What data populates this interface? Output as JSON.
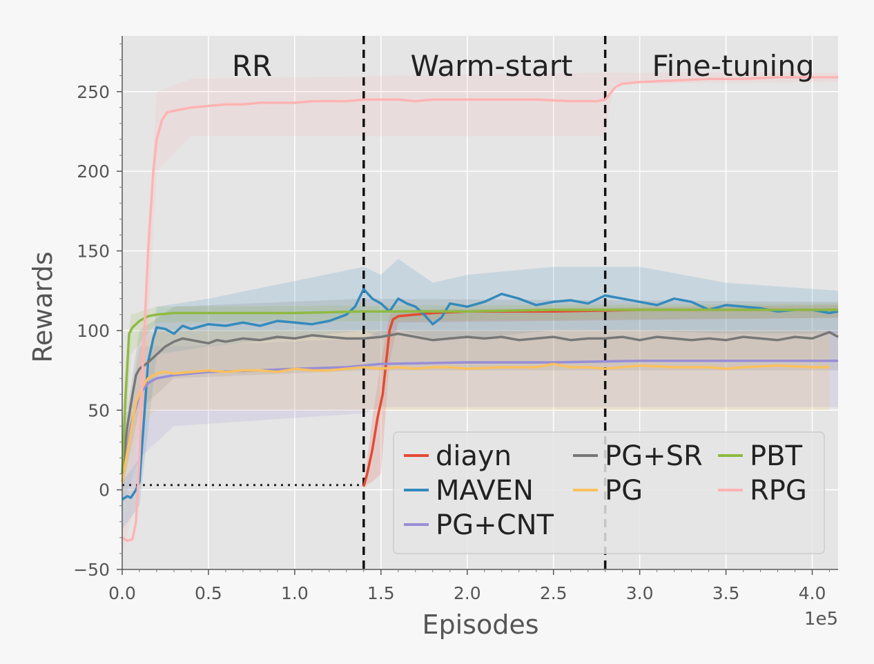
{
  "chart_data": {
    "type": "line",
    "xlabel": "Episodes",
    "ylabel": "Rewards",
    "x_multiplier_label": "1e5",
    "xlim": [
      0,
      4.15
    ],
    "ylim": [
      -50,
      285
    ],
    "xticks": [
      0.0,
      0.5,
      1.0,
      1.5,
      2.0,
      2.5,
      3.0,
      3.5,
      4.0
    ],
    "xtick_labels": [
      "0.0",
      "0.5",
      "1.0",
      "1.5",
      "2.0",
      "2.5",
      "3.0",
      "3.5",
      "4.0"
    ],
    "yticks": [
      -50,
      0,
      50,
      100,
      150,
      200,
      250
    ],
    "ytick_labels": [
      "−50",
      "0",
      "50",
      "100",
      "150",
      "200",
      "250"
    ],
    "grid": true,
    "phases": [
      {
        "label": "RR",
        "x_start": 0.0,
        "x_end": 1.4
      },
      {
        "label": "Warm-start",
        "x_start": 1.4,
        "x_end": 2.8
      },
      {
        "label": "Fine-tuning",
        "x_start": 2.8,
        "x_end": 4.15
      }
    ],
    "phase_boundaries": [
      1.4,
      2.8
    ],
    "baseline_annotation": {
      "y": 3,
      "x_start": 0.0,
      "x_end": 1.4,
      "style": "dotted"
    },
    "legend": {
      "placement": "lower-right",
      "ncol": 3
    },
    "series": [
      {
        "name": "diayn",
        "color": "#e24a33",
        "x": [
          1.4,
          1.42,
          1.45,
          1.48,
          1.51,
          1.53,
          1.55,
          1.57,
          1.6,
          1.7,
          1.8,
          2.0,
          2.5,
          3.0,
          3.5,
          4.15
        ],
        "y": [
          2,
          10,
          25,
          45,
          60,
          80,
          100,
          107,
          109,
          110,
          111,
          112,
          112,
          113,
          113,
          113
        ],
        "band": [
          [
            1.4,
            2,
            2
          ],
          [
            1.45,
            5,
            45
          ],
          [
            1.5,
            10,
            80
          ],
          [
            1.55,
            80,
            110
          ],
          [
            1.6,
            105,
            113
          ],
          [
            4.15,
            108,
            116
          ]
        ]
      },
      {
        "name": "MAVEN",
        "color": "#348abd",
        "x": [
          0.0,
          0.03,
          0.05,
          0.08,
          0.1,
          0.13,
          0.15,
          0.18,
          0.2,
          0.25,
          0.3,
          0.35,
          0.4,
          0.5,
          0.6,
          0.7,
          0.8,
          0.9,
          1.0,
          1.1,
          1.2,
          1.3,
          1.35,
          1.4,
          1.45,
          1.5,
          1.55,
          1.6,
          1.65,
          1.7,
          1.75,
          1.8,
          1.85,
          1.9,
          2.0,
          2.1,
          2.2,
          2.3,
          2.4,
          2.5,
          2.6,
          2.7,
          2.8,
          2.9,
          3.0,
          3.1,
          3.2,
          3.3,
          3.4,
          3.5,
          3.6,
          3.7,
          3.8,
          3.9,
          4.0,
          4.1,
          4.15
        ],
        "y": [
          -6,
          -4,
          -5,
          0,
          5,
          50,
          80,
          95,
          102,
          101,
          98,
          103,
          101,
          104,
          103,
          105,
          103,
          106,
          105,
          104,
          106,
          110,
          115,
          126,
          120,
          117,
          112,
          120,
          117,
          115,
          110,
          104,
          108,
          117,
          115,
          118,
          123,
          120,
          116,
          118,
          119,
          117,
          122,
          120,
          118,
          116,
          120,
          118,
          113,
          116,
          115,
          114,
          112,
          113,
          113,
          111,
          112
        ],
        "band": [
          [
            0.0,
            -25,
            5
          ],
          [
            0.1,
            -10,
            20
          ],
          [
            0.2,
            85,
            115
          ],
          [
            0.5,
            90,
            120
          ],
          [
            1.4,
            100,
            140
          ],
          [
            1.5,
            95,
            135
          ],
          [
            1.6,
            100,
            145
          ],
          [
            1.8,
            95,
            130
          ],
          [
            2.0,
            95,
            135
          ],
          [
            2.5,
            100,
            140
          ],
          [
            3.0,
            100,
            140
          ],
          [
            3.5,
            98,
            130
          ],
          [
            4.15,
            98,
            125
          ]
        ]
      },
      {
        "name": "PG+CNT",
        "color": "#988ed5",
        "x": [
          0.0,
          0.05,
          0.1,
          0.15,
          0.2,
          0.3,
          0.5,
          0.8,
          1.0,
          1.3,
          1.5,
          2.0,
          2.5,
          3.0,
          3.5,
          4.15
        ],
        "y": [
          5,
          40,
          60,
          67,
          70,
          72,
          74,
          75,
          76,
          77,
          79,
          80,
          80,
          81,
          81,
          81
        ],
        "band": [
          [
            0.0,
            -10,
            25
          ],
          [
            0.1,
            20,
            90
          ],
          [
            0.3,
            40,
            90
          ],
          [
            1.4,
            48,
            95
          ],
          [
            1.5,
            52,
            100
          ],
          [
            4.15,
            52,
            100
          ]
        ]
      },
      {
        "name": "PG+SR",
        "color": "#777777",
        "x": [
          0.0,
          0.03,
          0.06,
          0.08,
          0.1,
          0.15,
          0.2,
          0.25,
          0.3,
          0.35,
          0.4,
          0.45,
          0.5,
          0.55,
          0.6,
          0.7,
          0.8,
          0.9,
          1.0,
          1.1,
          1.2,
          1.3,
          1.4,
          1.5,
          1.6,
          1.7,
          1.8,
          1.9,
          2.0,
          2.1,
          2.2,
          2.3,
          2.4,
          2.5,
          2.6,
          2.7,
          2.8,
          2.9,
          3.0,
          3.1,
          3.2,
          3.3,
          3.4,
          3.5,
          3.6,
          3.7,
          3.8,
          3.9,
          4.0,
          4.1,
          4.15
        ],
        "y": [
          10,
          40,
          60,
          72,
          76,
          80,
          85,
          90,
          93,
          95,
          94,
          93,
          92,
          94,
          93,
          95,
          94,
          96,
          95,
          97,
          96,
          95,
          95,
          96,
          98,
          96,
          94,
          95,
          96,
          95,
          96,
          94,
          95,
          96,
          94,
          95,
          95,
          96,
          94,
          96,
          95,
          94,
          95,
          94,
          96,
          95,
          94,
          96,
          95,
          99,
          96
        ],
        "band": [
          [
            0.0,
            0,
            30
          ],
          [
            0.1,
            50,
            100
          ],
          [
            0.3,
            70,
            115
          ],
          [
            1.4,
            75,
            120
          ],
          [
            4.15,
            75,
            118
          ]
        ]
      },
      {
        "name": "PG",
        "color": "#fbc15e",
        "x": [
          0.0,
          0.04,
          0.08,
          0.12,
          0.15,
          0.2,
          0.25,
          0.3,
          0.4,
          0.5,
          0.6,
          0.7,
          0.8,
          0.9,
          1.0,
          1.1,
          1.2,
          1.3,
          1.4,
          1.5,
          1.6,
          1.7,
          1.8,
          1.9,
          2.0,
          2.2,
          2.4,
          2.5,
          2.6,
          2.7,
          2.8,
          3.0,
          3.2,
          3.4,
          3.5,
          3.6,
          3.8,
          4.0,
          4.1
        ],
        "y": [
          5,
          30,
          55,
          65,
          70,
          73,
          74,
          73,
          74,
          75,
          74,
          75,
          75,
          74,
          76,
          75,
          75,
          76,
          77,
          76,
          77,
          76,
          77,
          77,
          76,
          77,
          77,
          79,
          77,
          77,
          76,
          78,
          77,
          77,
          76,
          77,
          78,
          77,
          77
        ],
        "band": [
          [
            0.0,
            -10,
            20
          ],
          [
            0.1,
            40,
            90
          ],
          [
            0.2,
            50,
            100
          ],
          [
            1.4,
            50,
            100
          ],
          [
            4.1,
            50,
            100
          ]
        ]
      },
      {
        "name": "PBT",
        "color": "#8eba42",
        "x": [
          0.0,
          0.02,
          0.04,
          0.06,
          0.1,
          0.15,
          0.2,
          0.3,
          0.5,
          1.0,
          1.4,
          1.5,
          2.0,
          2.5,
          3.0,
          3.5,
          4.15
        ],
        "y": [
          10,
          60,
          98,
          102,
          106,
          109,
          110,
          111,
          111,
          111,
          112,
          112,
          112,
          113,
          113,
          113,
          113
        ],
        "band": [
          [
            0.0,
            0,
            40
          ],
          [
            0.05,
            85,
            110
          ],
          [
            0.2,
            105,
            115
          ],
          [
            4.15,
            108,
            117
          ]
        ]
      },
      {
        "name": "RPG",
        "color": "#ffb3b3",
        "x": [
          0.0,
          0.03,
          0.06,
          0.08,
          0.1,
          0.12,
          0.15,
          0.18,
          0.2,
          0.23,
          0.26,
          0.3,
          0.35,
          0.4,
          0.5,
          0.6,
          0.7,
          0.8,
          0.9,
          1.0,
          1.1,
          1.2,
          1.3,
          1.4,
          1.5,
          1.6,
          1.7,
          1.8,
          1.9,
          2.0,
          2.2,
          2.4,
          2.6,
          2.7,
          2.75,
          2.8,
          2.83,
          2.86,
          2.9,
          3.0,
          3.2,
          3.4,
          3.6,
          3.8,
          4.0,
          4.15
        ],
        "y": [
          -30,
          -32,
          -31,
          -20,
          20,
          80,
          150,
          200,
          220,
          232,
          237,
          238,
          239,
          240,
          241,
          242,
          242,
          243,
          243,
          243,
          244,
          244,
          244,
          245,
          245,
          245,
          244,
          245,
          245,
          245,
          245,
          245,
          244,
          244,
          244,
          245,
          249,
          253,
          255,
          256,
          257,
          258,
          258,
          259,
          259,
          259
        ],
        "band": [
          [
            0.0,
            -40,
            -20
          ],
          [
            0.1,
            0,
            60
          ],
          [
            0.2,
            200,
            250
          ],
          [
            0.4,
            222,
            258
          ],
          [
            2.8,
            222,
            262
          ],
          [
            2.85,
            255,
            262
          ],
          [
            4.15,
            256,
            262
          ]
        ]
      }
    ]
  }
}
